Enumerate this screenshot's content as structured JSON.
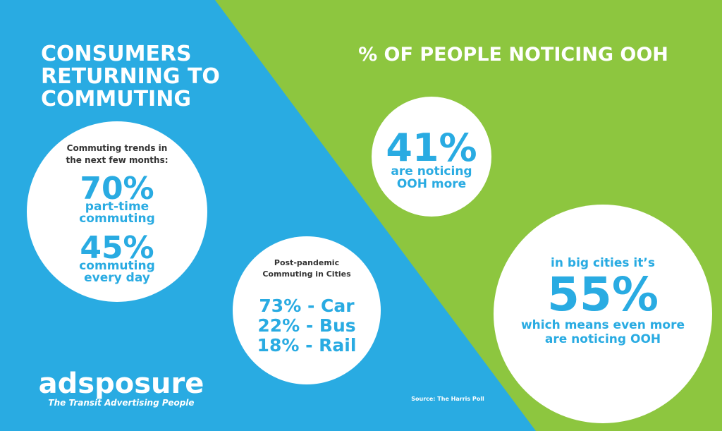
{
  "left": {
    "title": [
      "CONSUMERS",
      "RETURNING TO",
      "COMMUTING"
    ],
    "circle": {
      "heading": [
        "Commuting trends in",
        "the next few months:"
      ],
      "stats": [
        {
          "value": "70%",
          "label": [
            "part-time",
            "commuting"
          ]
        },
        {
          "value": "45%",
          "label": [
            "commuting",
            "every day"
          ]
        }
      ]
    }
  },
  "cities": {
    "heading": [
      "Post-pandemic",
      "Commuting in Cities"
    ],
    "rows": [
      "73%  - Car",
      "22% - Bus",
      "18% - Rail"
    ]
  },
  "right": {
    "title": "% OF PEOPLE NOTICING OOH",
    "circle_1": {
      "value": "41%",
      "label": [
        "are noticing",
        "OOH more"
      ]
    },
    "circle_2": {
      "intro": "in big cities it’s",
      "value": "55%",
      "label": [
        "which means even more",
        "are noticing OOH"
      ]
    }
  },
  "logo": {
    "name": "adsposure",
    "tagline": "The Transit  Advertising People"
  },
  "source": "Source: The Harris Poll"
}
